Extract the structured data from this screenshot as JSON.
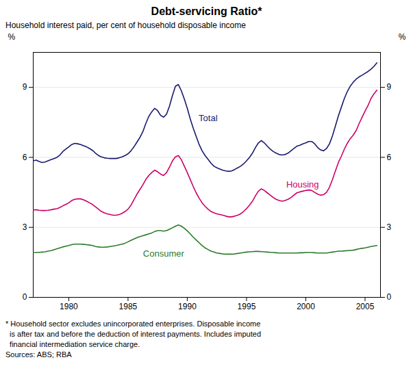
{
  "chart_data": {
    "type": "line",
    "title": "Debt-servicing Ratio*",
    "subtitle": "Household interest paid, per cent of household disposable income",
    "ylabel": "%",
    "y2label": "%",
    "xlim": [
      1977.0,
      2006.3
    ],
    "xticks": [
      1980,
      1985,
      1990,
      1995,
      2000,
      2005
    ],
    "ylim": [
      0,
      10.5
    ],
    "yticks": [
      0,
      3,
      6,
      9
    ],
    "y2lim": [
      0,
      10.5
    ],
    "y2ticks": [
      0,
      3,
      6,
      9
    ],
    "grid": true,
    "annotations": [
      "* Household sector excludes unincorporated enterprises. Disposable income",
      "  is after tax and before the deduction of interest payments. Includes imputed",
      "  financial intermediation service charge.",
      "Sources: ABS; RBA"
    ],
    "x": [
      1977.0,
      1977.25,
      1977.5,
      1977.75,
      1978.0,
      1978.25,
      1978.5,
      1978.75,
      1979.0,
      1979.25,
      1979.5,
      1979.75,
      1980.0,
      1980.25,
      1980.5,
      1980.75,
      1981.0,
      1981.25,
      1981.5,
      1981.75,
      1982.0,
      1982.25,
      1982.5,
      1982.75,
      1983.0,
      1983.25,
      1983.5,
      1983.75,
      1984.0,
      1984.25,
      1984.5,
      1984.75,
      1985.0,
      1985.25,
      1985.5,
      1985.75,
      1986.0,
      1986.25,
      1986.5,
      1986.75,
      1987.0,
      1987.25,
      1987.5,
      1987.75,
      1988.0,
      1988.25,
      1988.5,
      1988.75,
      1989.0,
      1989.25,
      1989.5,
      1989.75,
      1990.0,
      1990.25,
      1990.5,
      1990.75,
      1991.0,
      1991.25,
      1991.5,
      1991.75,
      1992.0,
      1992.25,
      1992.5,
      1992.75,
      1993.0,
      1993.25,
      1993.5,
      1993.75,
      1994.0,
      1994.25,
      1994.5,
      1994.75,
      1995.0,
      1995.25,
      1995.5,
      1995.75,
      1996.0,
      1996.25,
      1996.5,
      1996.75,
      1997.0,
      1997.25,
      1997.5,
      1997.75,
      1998.0,
      1998.25,
      1998.5,
      1998.75,
      1999.0,
      1999.25,
      1999.5,
      1999.75,
      2000.0,
      2000.25,
      2000.5,
      2000.75,
      2001.0,
      2001.25,
      2001.5,
      2001.75,
      2002.0,
      2002.25,
      2002.5,
      2002.75,
      2003.0,
      2003.25,
      2003.5,
      2003.75,
      2004.0,
      2004.25,
      2004.5,
      2004.75,
      2005.0,
      2005.25,
      2005.5,
      2005.75,
      2006.0
    ],
    "series": [
      {
        "name": "Total",
        "color": "#1a1a6e",
        "values": [
          5.85,
          5.88,
          5.82,
          5.78,
          5.8,
          5.85,
          5.9,
          5.95,
          6.0,
          6.1,
          6.25,
          6.35,
          6.45,
          6.55,
          6.6,
          6.58,
          6.55,
          6.5,
          6.45,
          6.38,
          6.3,
          6.18,
          6.08,
          6.02,
          5.98,
          5.96,
          5.95,
          5.95,
          5.95,
          5.98,
          6.02,
          6.08,
          6.15,
          6.28,
          6.45,
          6.65,
          6.85,
          7.1,
          7.45,
          7.75,
          7.95,
          8.1,
          8.0,
          7.8,
          7.72,
          7.85,
          8.2,
          8.65,
          9.05,
          9.12,
          8.85,
          8.5,
          8.1,
          7.65,
          7.25,
          6.9,
          6.55,
          6.28,
          6.08,
          5.92,
          5.75,
          5.62,
          5.55,
          5.5,
          5.45,
          5.42,
          5.4,
          5.42,
          5.48,
          5.55,
          5.62,
          5.72,
          5.85,
          6.0,
          6.18,
          6.42,
          6.62,
          6.72,
          6.62,
          6.48,
          6.35,
          6.25,
          6.18,
          6.12,
          6.1,
          6.12,
          6.18,
          6.28,
          6.38,
          6.48,
          6.52,
          6.58,
          6.62,
          6.68,
          6.68,
          6.58,
          6.42,
          6.32,
          6.28,
          6.38,
          6.58,
          6.92,
          7.35,
          7.78,
          8.15,
          8.52,
          8.82,
          9.05,
          9.22,
          9.35,
          9.45,
          9.52,
          9.6,
          9.68,
          9.78,
          9.9,
          10.05
        ]
      },
      {
        "name": "Housing",
        "color": "#cc0066",
        "values": [
          3.75,
          3.75,
          3.73,
          3.72,
          3.72,
          3.73,
          3.75,
          3.78,
          3.8,
          3.85,
          3.92,
          3.98,
          4.05,
          4.15,
          4.2,
          4.22,
          4.22,
          4.18,
          4.12,
          4.05,
          3.98,
          3.88,
          3.78,
          3.68,
          3.62,
          3.58,
          3.55,
          3.52,
          3.52,
          3.55,
          3.6,
          3.68,
          3.78,
          3.95,
          4.18,
          4.42,
          4.62,
          4.82,
          5.05,
          5.22,
          5.35,
          5.45,
          5.38,
          5.28,
          5.22,
          5.35,
          5.58,
          5.85,
          6.02,
          6.08,
          5.9,
          5.62,
          5.35,
          5.05,
          4.75,
          4.48,
          4.25,
          4.05,
          3.9,
          3.78,
          3.68,
          3.62,
          3.58,
          3.55,
          3.52,
          3.48,
          3.45,
          3.45,
          3.48,
          3.52,
          3.58,
          3.68,
          3.8,
          3.95,
          4.12,
          4.35,
          4.55,
          4.65,
          4.58,
          4.48,
          4.38,
          4.28,
          4.2,
          4.15,
          4.12,
          4.15,
          4.2,
          4.28,
          4.38,
          4.48,
          4.52,
          4.55,
          4.58,
          4.6,
          4.58,
          4.5,
          4.42,
          4.38,
          4.4,
          4.5,
          4.72,
          5.05,
          5.42,
          5.78,
          6.05,
          6.35,
          6.6,
          6.8,
          6.95,
          7.15,
          7.45,
          7.72,
          7.98,
          8.22,
          8.52,
          8.72,
          8.88
        ]
      },
      {
        "name": "Consumer",
        "color": "#2a7a2a",
        "values": [
          1.92,
          1.92,
          1.93,
          1.94,
          1.95,
          1.98,
          2.0,
          2.04,
          2.08,
          2.12,
          2.16,
          2.19,
          2.22,
          2.26,
          2.28,
          2.28,
          2.28,
          2.27,
          2.26,
          2.24,
          2.22,
          2.18,
          2.16,
          2.15,
          2.15,
          2.16,
          2.18,
          2.2,
          2.22,
          2.25,
          2.28,
          2.32,
          2.38,
          2.44,
          2.5,
          2.56,
          2.6,
          2.64,
          2.68,
          2.72,
          2.76,
          2.82,
          2.86,
          2.86,
          2.84,
          2.86,
          2.92,
          2.98,
          3.05,
          3.1,
          3.05,
          2.96,
          2.85,
          2.72,
          2.58,
          2.46,
          2.34,
          2.22,
          2.12,
          2.05,
          1.98,
          1.94,
          1.9,
          1.88,
          1.86,
          1.85,
          1.85,
          1.85,
          1.86,
          1.88,
          1.9,
          1.92,
          1.94,
          1.95,
          1.96,
          1.97,
          1.97,
          1.96,
          1.95,
          1.94,
          1.93,
          1.92,
          1.91,
          1.9,
          1.9,
          1.9,
          1.9,
          1.9,
          1.9,
          1.9,
          1.91,
          1.91,
          1.92,
          1.92,
          1.92,
          1.91,
          1.9,
          1.9,
          1.9,
          1.9,
          1.92,
          1.94,
          1.96,
          1.98,
          1.98,
          1.99,
          2.0,
          2.01,
          2.02,
          2.05,
          2.08,
          2.1,
          2.12,
          2.15,
          2.18,
          2.2,
          2.22
        ]
      }
    ]
  }
}
